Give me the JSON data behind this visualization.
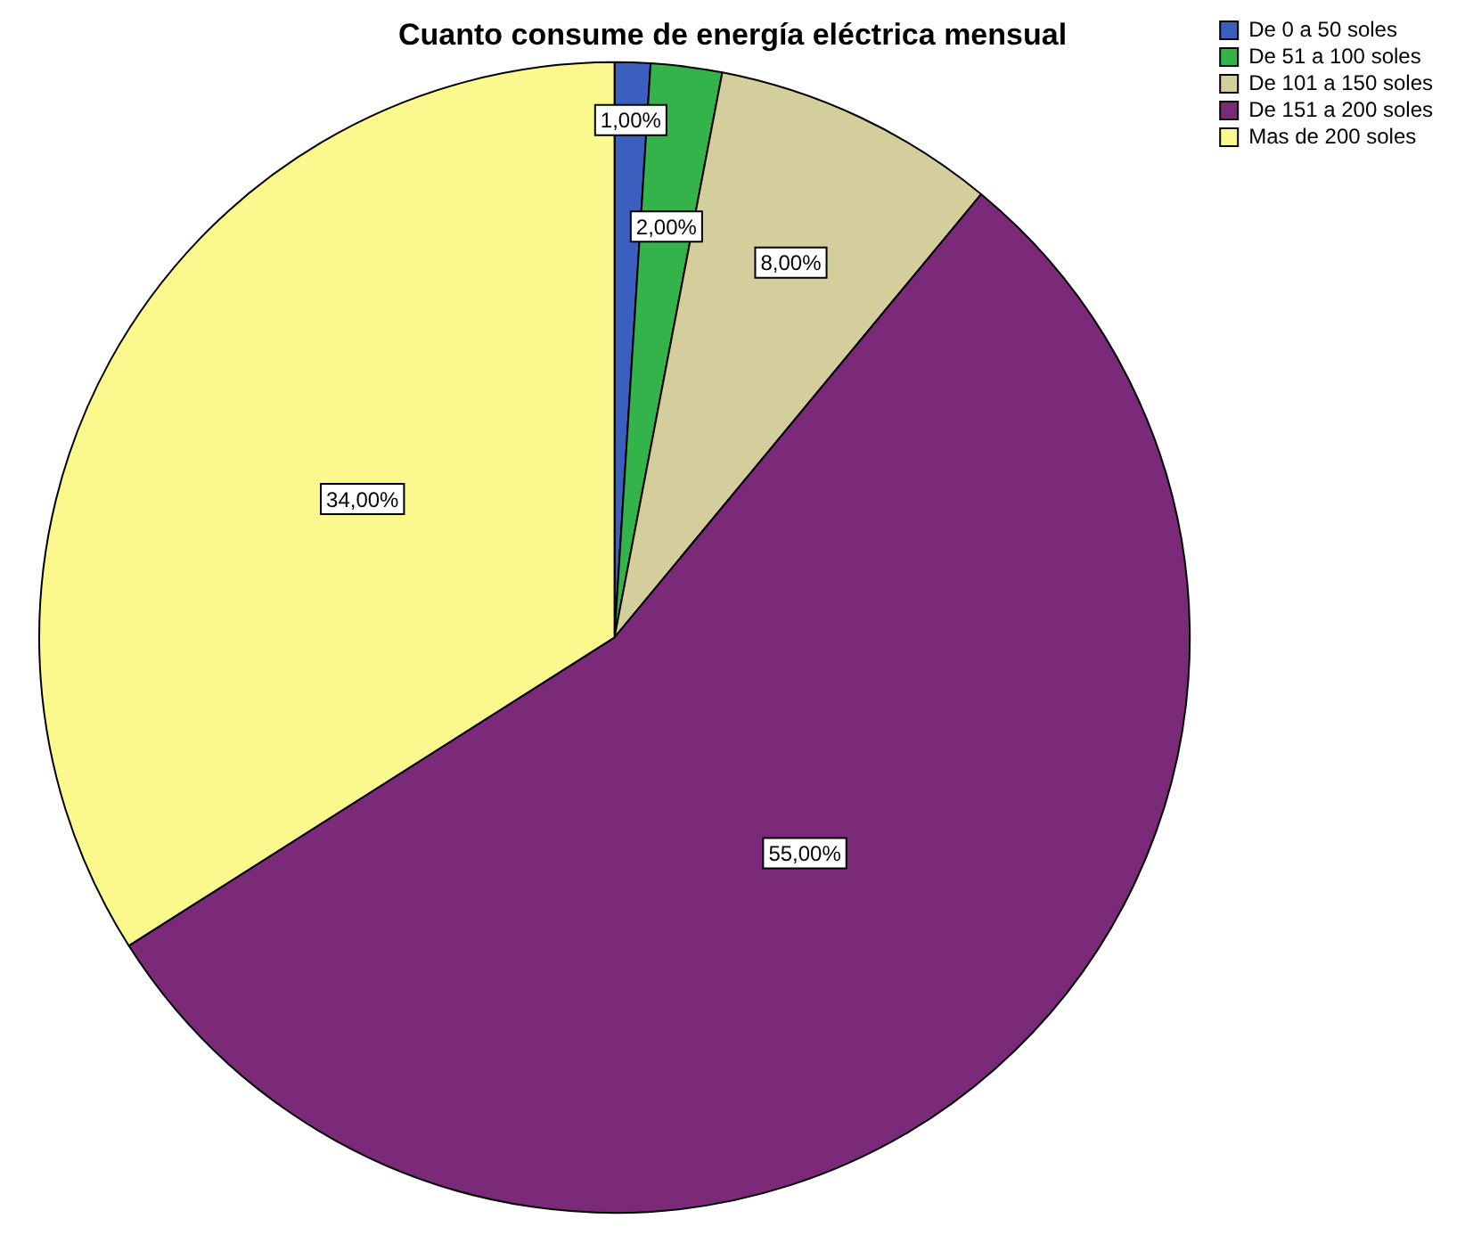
{
  "chart_data": {
    "type": "pie",
    "title": "Cuanto consume de energía eléctrica mensual",
    "categories": [
      "De 0 a 50 soles",
      "De 51 a 100 soles",
      "De 101 a 150 soles",
      "De 151 a 200 soles",
      "Mas de 200 soles"
    ],
    "values": [
      1,
      2,
      8,
      55,
      34
    ],
    "value_labels": [
      "1,00%",
      "2,00%",
      "8,00%",
      "55,00%",
      "34,00%"
    ],
    "colors": [
      "#3b5fbf",
      "#33b34a",
      "#d4cd9c",
      "#7b2a7a",
      "#fbf88d"
    ],
    "legend": "top right"
  }
}
